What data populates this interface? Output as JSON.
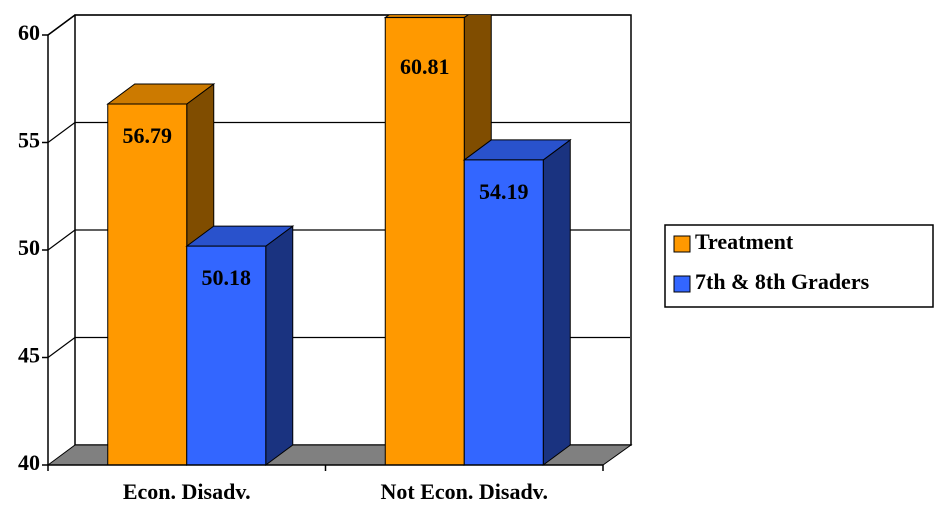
{
  "chart_data": {
    "type": "bar3d",
    "categories": [
      "Econ. Disadv.",
      "Not Econ. Disadv."
    ],
    "series": [
      {
        "name": "Treatment",
        "color": "#ff9900",
        "values": [
          56.79,
          60.81
        ]
      },
      {
        "name": "7th & 8th Graders",
        "color": "#3366ff",
        "values": [
          50.18,
          54.19
        ]
      }
    ],
    "ylim": [
      40,
      60
    ],
    "yticks": [
      40,
      45,
      50,
      55,
      60
    ],
    "grid": true,
    "legend": "right"
  }
}
